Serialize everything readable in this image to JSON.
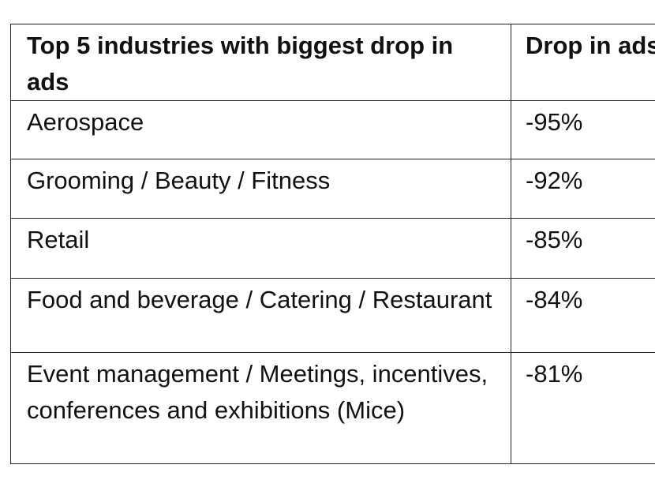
{
  "table": {
    "header": [
      "Top 5 industries with biggest drop in ads",
      "Drop in ads"
    ],
    "rows": [
      [
        "Aerospace",
        "-95%"
      ],
      [
        "Grooming / Beauty / Fitness",
        "-92%"
      ],
      [
        "Retail",
        "-85%"
      ],
      [
        "Food and beverage / Catering / Restaurant",
        "-84%"
      ],
      [
        "Event management / Meetings, incentives, conferences and exhibitions (Mice)",
        "-81%"
      ]
    ]
  }
}
